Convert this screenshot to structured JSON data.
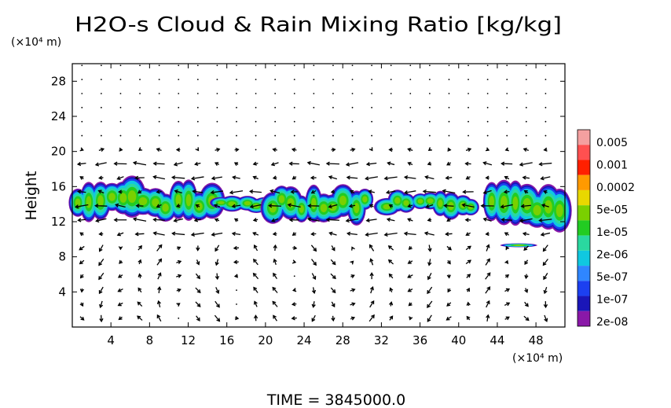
{
  "chart_data": {
    "type": "heatmap",
    "title": "H2O-s Cloud & Rain Mixing Ratio [kg/kg]",
    "ylabel": "Height",
    "y_unit_label": "(×10⁴ m)",
    "x_unit_label": "(×10⁴ m)",
    "time_label": "TIME  =  3845000.0",
    "xlim": [
      0,
      51
    ],
    "ylim": [
      0,
      30
    ],
    "x_ticks": [
      4,
      8,
      12,
      16,
      20,
      24,
      28,
      32,
      36,
      40,
      44,
      48
    ],
    "y_ticks": [
      4,
      8,
      12,
      16,
      20,
      24,
      28
    ],
    "overlay": "wind vectors (arrows) on a regular grid",
    "colorbar": {
      "labels": [
        "0.005",
        "0.001",
        "0.0002",
        "5e-05",
        "1e-05",
        "2e-06",
        "5e-07",
        "1e-07",
        "2e-08"
      ],
      "colors_top_to_bottom": [
        "#f4a0a0",
        "#ff5050",
        "#ff2000",
        "#ff9a00",
        "#e8d800",
        "#7ad000",
        "#22cc22",
        "#2ad8a0",
        "#10c8e0",
        "#2f86ff",
        "#1c40f0",
        "#1a16b8",
        "#8a18a8"
      ]
    },
    "cloud_bands": [
      {
        "x": [
          0,
          15
        ],
        "y": [
          12,
          16.5
        ],
        "note": "dense band"
      },
      {
        "x": [
          15,
          22
        ],
        "y": [
          13,
          15
        ],
        "note": "thin band"
      },
      {
        "x": [
          20,
          31
        ],
        "y": [
          12,
          16
        ],
        "note": "dense band"
      },
      {
        "x": [
          32,
          42
        ],
        "y": [
          12.5,
          15.5
        ],
        "note": "patchy band"
      },
      {
        "x": [
          43,
          51
        ],
        "y": [
          11.5,
          16.5
        ],
        "note": "dense band"
      },
      {
        "x": [
          45.5,
          47
        ],
        "y": [
          9,
          9.5
        ],
        "note": "small isolated cell"
      }
    ]
  }
}
